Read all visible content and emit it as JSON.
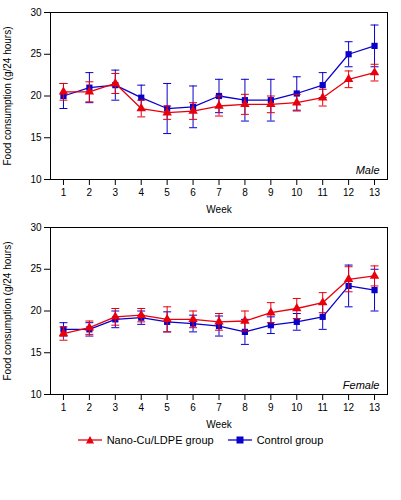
{
  "chart_data": [
    {
      "type": "line",
      "xlabel": "Week",
      "ylabel": "Food consumption (g/24 hours)",
      "annotation": "Male",
      "x": [
        1,
        2,
        3,
        4,
        5,
        6,
        7,
        8,
        9,
        10,
        11,
        12,
        13
      ],
      "xlim": [
        0.5,
        13.5
      ],
      "xticks": [
        1,
        2,
        3,
        4,
        5,
        6,
        7,
        8,
        9,
        10,
        11,
        12,
        13
      ],
      "ylim": [
        10,
        30
      ],
      "yticks": [
        10,
        15,
        20,
        25,
        30
      ],
      "grid": false,
      "series": [
        {
          "name": "Nano-Cu/LDPE group",
          "color": "#e8000d",
          "marker": "triangle",
          "values": [
            20.5,
            20.5,
            21.5,
            18.5,
            18.0,
            18.2,
            18.8,
            19.0,
            19.0,
            19.2,
            19.8,
            22.0,
            22.8
          ],
          "yerr": [
            1.0,
            1.2,
            1.2,
            1.0,
            0.8,
            1.0,
            1.2,
            1.2,
            1.0,
            1.0,
            1.0,
            1.0,
            1.0
          ]
        },
        {
          "name": "Control group",
          "color": "#0a00cc",
          "marker": "square",
          "values": [
            20.0,
            21.0,
            21.3,
            19.8,
            18.5,
            18.7,
            20.0,
            19.5,
            19.5,
            20.3,
            21.3,
            25.0,
            26.0
          ],
          "yerr": [
            1.5,
            1.8,
            1.8,
            1.5,
            3.0,
            2.5,
            2.0,
            2.5,
            2.5,
            2.0,
            1.5,
            1.5,
            2.5
          ]
        }
      ]
    },
    {
      "type": "line",
      "xlabel": "Week",
      "ylabel": "Food consumption (g/24 hours)",
      "annotation": "Female",
      "x": [
        1,
        2,
        3,
        4,
        5,
        6,
        7,
        8,
        9,
        10,
        11,
        12,
        13
      ],
      "xlim": [
        0.5,
        13.5
      ],
      "xticks": [
        1,
        2,
        3,
        4,
        5,
        6,
        7,
        8,
        9,
        10,
        11,
        12,
        13
      ],
      "ylim": [
        10,
        30
      ],
      "yticks": [
        10,
        15,
        20,
        25,
        30
      ],
      "grid": false,
      "legend": "bottom",
      "series": [
        {
          "name": "Nano-Cu/LDPE group",
          "color": "#e8000d",
          "marker": "triangle",
          "values": [
            17.3,
            18.0,
            19.3,
            19.5,
            19.0,
            19.0,
            18.7,
            18.8,
            19.8,
            20.3,
            21.0,
            23.8,
            24.2
          ],
          "yerr": [
            0.8,
            0.8,
            1.0,
            0.8,
            1.5,
            1.0,
            1.0,
            1.2,
            1.2,
            1.2,
            1.2,
            1.5,
            1.2
          ]
        },
        {
          "name": "Control group",
          "color": "#0a00cc",
          "marker": "square",
          "values": [
            17.8,
            17.8,
            19.0,
            19.2,
            18.7,
            18.5,
            18.2,
            17.5,
            18.3,
            18.7,
            19.3,
            23.0,
            22.5
          ],
          "yerr": [
            0.8,
            0.8,
            1.0,
            0.8,
            1.2,
            1.0,
            1.2,
            1.5,
            1.0,
            1.0,
            1.5,
            2.5,
            2.5
          ]
        }
      ]
    }
  ]
}
